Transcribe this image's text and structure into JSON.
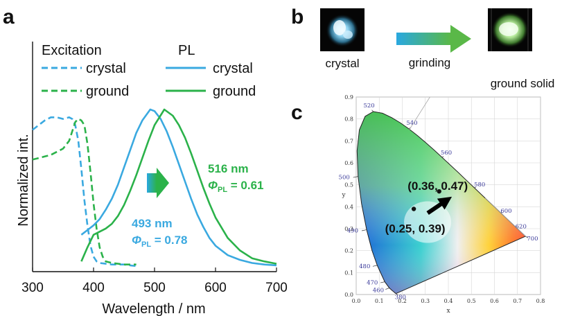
{
  "panel_labels": [
    "a",
    "b",
    "c"
  ],
  "colors": {
    "crystal": "#3aa9e0",
    "ground": "#2bb24a"
  },
  "chart_data": [
    {
      "type": "line",
      "panel": "a",
      "xlabel": "Wavelength / nm",
      "ylabel": "Normalized  int.",
      "xlim": [
        300,
        700
      ],
      "xticks": [
        300,
        400,
        500,
        600,
        700
      ],
      "ylim": [
        0,
        1.05
      ],
      "yticks_shown": false,
      "grid": false,
      "legend": {
        "placement": "top-left",
        "groups": [
          {
            "title": "Excitation",
            "style": "dashed",
            "entries": [
              "crystal",
              "ground"
            ]
          },
          {
            "title": "PL",
            "style": "solid",
            "entries": [
              "crystal",
              "ground"
            ]
          }
        ]
      },
      "series": [
        {
          "name": "crystal",
          "group": "Excitation",
          "color": "#3aa9e0",
          "style": "dashed",
          "x": [
            300,
            310,
            320,
            330,
            340,
            350,
            360,
            365,
            370,
            375,
            380,
            385,
            390,
            395,
            400,
            405,
            410,
            420,
            430,
            440,
            450,
            460,
            470
          ],
          "y": [
            0.87,
            0.9,
            0.93,
            0.95,
            0.95,
            0.94,
            0.95,
            0.94,
            0.9,
            0.8,
            0.62,
            0.42,
            0.26,
            0.13,
            0.06,
            0.03,
            0.02,
            0.015,
            0.01,
            0.01,
            0.01,
            0.005,
            0.0
          ]
        },
        {
          "name": "ground",
          "group": "Excitation",
          "color": "#2bb24a",
          "style": "dashed",
          "x": [
            300,
            310,
            320,
            330,
            340,
            350,
            360,
            365,
            370,
            375,
            380,
            385,
            390,
            395,
            400,
            405,
            410,
            415,
            420,
            430,
            440,
            450,
            460,
            470
          ],
          "y": [
            0.68,
            0.69,
            0.7,
            0.71,
            0.73,
            0.75,
            0.8,
            0.86,
            0.92,
            0.94,
            0.93,
            0.9,
            0.78,
            0.6,
            0.4,
            0.24,
            0.12,
            0.06,
            0.03,
            0.02,
            0.015,
            0.01,
            0.01,
            0.01
          ]
        },
        {
          "name": "crystal",
          "group": "PL",
          "color": "#3aa9e0",
          "style": "solid",
          "peak_label": "493 nm",
          "quantum_yield": "Φ_PL = 0.78",
          "x": [
            380,
            390,
            400,
            410,
            420,
            430,
            440,
            450,
            460,
            470,
            480,
            493,
            500,
            510,
            520,
            530,
            540,
            550,
            560,
            570,
            580,
            590,
            600,
            620,
            640,
            660,
            680,
            700
          ],
          "y": [
            0.2,
            0.23,
            0.26,
            0.3,
            0.36,
            0.43,
            0.52,
            0.63,
            0.74,
            0.85,
            0.93,
            1.0,
            0.99,
            0.94,
            0.86,
            0.76,
            0.65,
            0.54,
            0.43,
            0.33,
            0.25,
            0.18,
            0.13,
            0.07,
            0.04,
            0.02,
            0.01,
            0.005
          ]
        },
        {
          "name": "ground",
          "group": "PL",
          "color": "#2bb24a",
          "style": "solid",
          "peak_label": "516 nm",
          "quantum_yield": "Φ_PL = 0.61",
          "x": [
            380,
            390,
            400,
            410,
            420,
            430,
            440,
            450,
            460,
            470,
            480,
            490,
            500,
            516,
            530,
            540,
            550,
            560,
            570,
            580,
            590,
            600,
            620,
            640,
            660,
            680,
            700
          ],
          "y": [
            0.03,
            0.12,
            0.2,
            0.22,
            0.24,
            0.27,
            0.32,
            0.39,
            0.48,
            0.58,
            0.69,
            0.8,
            0.9,
            1.0,
            0.96,
            0.9,
            0.82,
            0.72,
            0.61,
            0.5,
            0.4,
            0.31,
            0.18,
            0.1,
            0.05,
            0.03,
            0.015
          ]
        }
      ],
      "annotations": [
        {
          "text": "516 nm",
          "color": "#2bb24a"
        },
        {
          "text": "0.61",
          "prefix": "Φ",
          "sub": "PL",
          "color": "#2bb24a"
        },
        {
          "text": "493 nm",
          "color": "#3aa9e0"
        },
        {
          "text": "0.78",
          "prefix": "Φ",
          "sub": "PL",
          "color": "#3aa9e0"
        }
      ]
    },
    {
      "type": "scatter",
      "panel": "c",
      "description_kind": "CIE 1931 chromaticity diagram",
      "xlabel": "x",
      "ylabel": "y",
      "xlim": [
        0.0,
        0.8
      ],
      "ylim": [
        0.0,
        0.9
      ],
      "xticks": [
        "0.0",
        "0.1",
        "0.2",
        "0.3",
        "0.4",
        "0.5",
        "0.6",
        "0.7",
        "0.8"
      ],
      "yticks": [
        "0.0",
        "0.1",
        "0.2",
        "0.3",
        "0.4",
        "0.5",
        "0.6",
        "0.7",
        "0.8",
        "0.9"
      ],
      "wavelength_labels": [
        "380",
        "460",
        "470",
        "480",
        "490",
        "500",
        "520",
        "540",
        "560",
        "580",
        "600",
        "620",
        "700"
      ],
      "points": [
        {
          "label": "(0.25, 0.39)",
          "x": 0.25,
          "y": 0.39
        },
        {
          "label": "(0.36, 0.47)",
          "x": 0.36,
          "y": 0.47
        }
      ]
    }
  ],
  "panel_b": {
    "left_caption": "crystal",
    "arrow_caption": "grinding",
    "right_caption": "ground solid"
  }
}
